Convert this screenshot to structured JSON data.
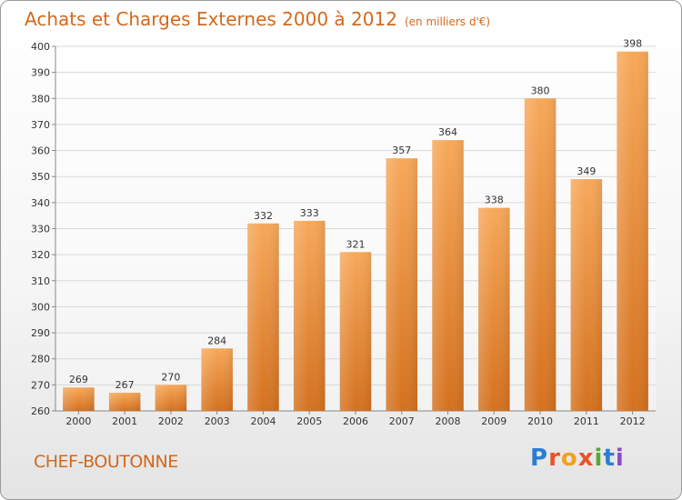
{
  "header": {
    "title": "Achats et Charges Externes 2000 à 2012",
    "subtitle": "(en milliers d'€)"
  },
  "footer": {
    "commune": "CHEF-BOUTONNE",
    "logo_letters": [
      "P",
      "r",
      "o",
      "x",
      "i",
      "t",
      "i"
    ],
    "logo_colors": [
      "#2a7fd4",
      "#e8542c",
      "#f0a21c",
      "#e8542c",
      "#5aa832",
      "#2a7fd4",
      "#8a4cc0"
    ]
  },
  "colors": {
    "bar_top": "#f7a85a",
    "bar_bottom": "#d4711f",
    "grid": "#d9d9d9",
    "text": "#333333",
    "title": "#d2691e"
  },
  "chart_data": {
    "type": "bar",
    "categories": [
      "2000",
      "2001",
      "2002",
      "2003",
      "2004",
      "2005",
      "2006",
      "2007",
      "2008",
      "2009",
      "2010",
      "2011",
      "2012"
    ],
    "values": [
      269,
      267,
      270,
      284,
      332,
      333,
      321,
      357,
      364,
      338,
      380,
      349,
      398
    ],
    "title": "Achats et Charges Externes 2000 à 2012",
    "xlabel": "",
    "ylabel": "",
    "ylim": [
      260,
      400
    ],
    "yticks": [
      260,
      270,
      280,
      290,
      300,
      310,
      320,
      330,
      340,
      350,
      360,
      370,
      380,
      390,
      400
    ],
    "grid": true,
    "legend": "none"
  }
}
